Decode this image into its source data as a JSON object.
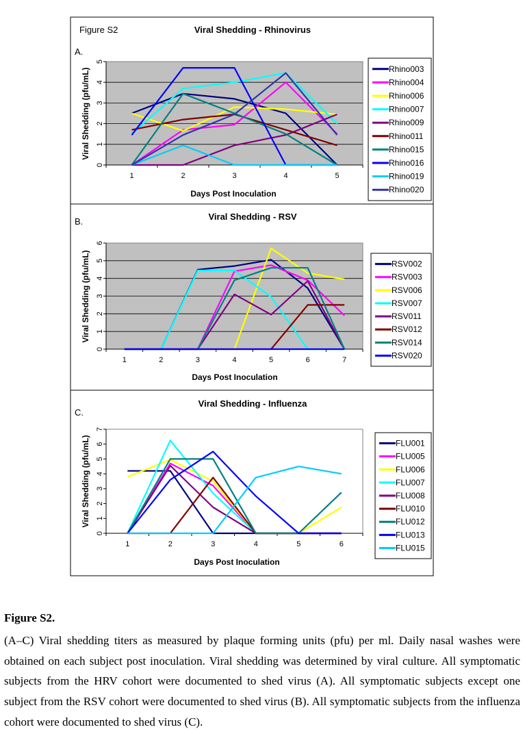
{
  "figure_label": "Figure S2",
  "caption": {
    "title": "Figure S2.",
    "text": "(A–C) Viral shedding titers as measured by plaque forming units (pfu) per ml. Daily nasal washes were obtained on each subject post inoculation. Viral shedding was determined by viral culture. All symptomatic subjects from the HRV cohort were documented to shed virus (A). All symptomatic subjects except one subject from the RSV cohort were documented to shed virus (B). All symptomatic subjects from the influenza cohort were documented to shed virus (C)."
  },
  "chart_data": [
    {
      "panel_label": "A.",
      "type": "line",
      "title": "Viral Shedding - Rhinovirus",
      "xlabel": "Days Post Inoculation",
      "ylabel": "Viral Shedding (pfu/mL)",
      "x": [
        1,
        2,
        3,
        4,
        5
      ],
      "ylim": [
        0,
        5
      ],
      "yticks": [
        0,
        1,
        2,
        3,
        4,
        5
      ],
      "plot_background": "#c0c0c0",
      "grid": true,
      "legend_position": "right",
      "series": [
        {
          "name": "Rhino003",
          "color": "#000080",
          "values": [
            2.5,
            3.45,
            3.2,
            2.5,
            0
          ]
        },
        {
          "name": "Rhino004",
          "color": "#ff00ff",
          "values": [
            0,
            1.7,
            1.95,
            4.0,
            1.5
          ]
        },
        {
          "name": "Rhino006",
          "color": "#ffff00",
          "values": [
            2.5,
            1.65,
            2.8,
            2.7,
            2.45
          ]
        },
        {
          "name": "Rhino007",
          "color": "#00ffff",
          "values": [
            1.5,
            3.7,
            4.0,
            4.45,
            2.0
          ]
        },
        {
          "name": "Rhino009",
          "color": "#800080",
          "values": [
            0,
            0,
            0.95,
            1.45,
            2.45
          ]
        },
        {
          "name": "Rhino011",
          "color": "#800000",
          "values": [
            1.7,
            2.2,
            2.45,
            1.7,
            0.95
          ]
        },
        {
          "name": "Rhino015",
          "color": "#008080",
          "values": [
            0,
            3.45,
            2.5,
            1.5,
            0
          ]
        },
        {
          "name": "Rhino016",
          "color": "#0000ff",
          "values": [
            1.45,
            4.7,
            4.7,
            0,
            0
          ]
        },
        {
          "name": "Rhino019",
          "color": "#00ccff",
          "values": [
            0,
            0.95,
            0,
            0,
            0
          ]
        },
        {
          "name": "Rhino020",
          "color": "#3333aa",
          "values": [
            0,
            1.45,
            2.45,
            4.45,
            1.45
          ]
        }
      ]
    },
    {
      "panel_label": "B.",
      "type": "line",
      "title": "Viral Shedding - RSV",
      "xlabel": "Days Post Inoculation",
      "ylabel": "Viral Shedding (pfu/mL)",
      "x": [
        1,
        2,
        3,
        4,
        5,
        6,
        7
      ],
      "ylim": [
        0,
        6
      ],
      "yticks": [
        0,
        1,
        2,
        3,
        4,
        5,
        6
      ],
      "plot_background": "#c0c0c0",
      "grid": true,
      "legend_position": "right",
      "series": [
        {
          "name": "RSV002",
          "color": "#000080",
          "values": [
            0,
            0,
            4.5,
            4.7,
            5.05,
            3.45,
            0
          ]
        },
        {
          "name": "RSV003",
          "color": "#ff00ff",
          "values": [
            0,
            0,
            0,
            4.4,
            4.75,
            3.9,
            1.9
          ]
        },
        {
          "name": "RSV006",
          "color": "#ffff00",
          "values": [
            0,
            0,
            0,
            0,
            5.7,
            4.3,
            3.95
          ]
        },
        {
          "name": "RSV007",
          "color": "#00ffff",
          "values": [
            0,
            0,
            4.45,
            4.45,
            2.95,
            0,
            0
          ]
        },
        {
          "name": "RSV011",
          "color": "#800080",
          "values": [
            0,
            0,
            0,
            3.1,
            1.95,
            3.85,
            0
          ]
        },
        {
          "name": "RSV012",
          "color": "#800000",
          "values": [
            0,
            0,
            0,
            0,
            0,
            2.5,
            2.5
          ]
        },
        {
          "name": "RSV014",
          "color": "#008080",
          "values": [
            0,
            0,
            0,
            3.9,
            4.6,
            4.6,
            0
          ]
        },
        {
          "name": "RSV020",
          "color": "#0000ff",
          "values": [
            0,
            0,
            0,
            0,
            0,
            0,
            0
          ]
        }
      ]
    },
    {
      "panel_label": "C.",
      "type": "line",
      "title": "Viral Shedding - Influenza",
      "xlabel": "Days Post Inoculation",
      "ylabel": "Viral Shedding (pfu/mL)",
      "x": [
        1,
        2,
        3,
        4,
        5,
        6
      ],
      "ylim": [
        0,
        7
      ],
      "yticks": [
        0,
        1,
        2,
        3,
        4,
        5,
        6,
        7
      ],
      "plot_background": "#ffffff",
      "grid": false,
      "legend_position": "right",
      "series": [
        {
          "name": "FLU001",
          "color": "#000080",
          "values": [
            4.2,
            4.2,
            0,
            0,
            0,
            0
          ]
        },
        {
          "name": "FLU005",
          "color": "#ff00ff",
          "values": [
            0,
            4.7,
            3.2,
            0,
            0,
            0
          ]
        },
        {
          "name": "FLU006",
          "color": "#ffff00",
          "values": [
            3.8,
            4.95,
            3.5,
            0,
            0,
            1.75
          ]
        },
        {
          "name": "FLU007",
          "color": "#00ffff",
          "values": [
            0,
            6.25,
            2.7,
            0,
            0,
            0
          ]
        },
        {
          "name": "FLU008",
          "color": "#800080",
          "values": [
            0,
            4.55,
            1.75,
            0,
            0,
            0
          ]
        },
        {
          "name": "FLU010",
          "color": "#800000",
          "values": [
            0,
            0,
            3.75,
            0,
            0,
            0
          ]
        },
        {
          "name": "FLU012",
          "color": "#008080",
          "values": [
            0,
            5.0,
            5.0,
            0,
            0,
            2.75
          ]
        },
        {
          "name": "FLU013",
          "color": "#0000ff",
          "values": [
            0,
            3.6,
            5.5,
            2.5,
            0,
            0
          ]
        },
        {
          "name": "FLU015",
          "color": "#00ccff",
          "values": [
            0,
            0,
            0,
            3.75,
            4.5,
            4.0
          ]
        }
      ]
    }
  ]
}
